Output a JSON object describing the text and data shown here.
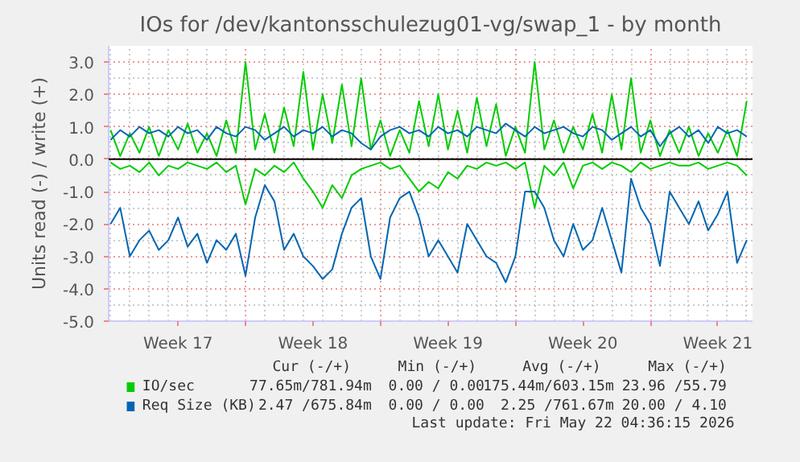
{
  "chart_data": {
    "type": "line",
    "title": "IOs for /dev/kantonsschulezug01-vg/swap_1 - by month",
    "ylabel": "Units read (-) / write (+)",
    "x": [
      "2026-04-20T00:00",
      "2026-04-20T12:00",
      "2026-04-21T00:00",
      "2026-04-21T12:00",
      "2026-04-22T00:00",
      "2026-04-22T12:00",
      "2026-04-23T00:00",
      "2026-04-23T12:00",
      "2026-04-24T00:00",
      "2026-04-24T12:00",
      "2026-04-25T00:00",
      "2026-04-25T12:00",
      "2026-04-26T00:00",
      "2026-04-26T12:00",
      "2026-04-27T00:00",
      "2026-04-27T12:00",
      "2026-04-28T00:00",
      "2026-04-28T12:00",
      "2026-04-29T00:00",
      "2026-04-29T12:00",
      "2026-04-30T00:00",
      "2026-04-30T12:00",
      "2026-05-01T00:00",
      "2026-05-01T12:00",
      "2026-05-02T00:00",
      "2026-05-02T12:00",
      "2026-05-03T00:00",
      "2026-05-03T12:00",
      "2026-05-04T00:00",
      "2026-05-04T12:00",
      "2026-05-05T00:00",
      "2026-05-05T12:00",
      "2026-05-06T00:00",
      "2026-05-06T12:00",
      "2026-05-07T00:00",
      "2026-05-07T12:00",
      "2026-05-08T00:00",
      "2026-05-08T12:00",
      "2026-05-09T00:00",
      "2026-05-09T12:00",
      "2026-05-10T00:00",
      "2026-05-10T12:00",
      "2026-05-11T00:00",
      "2026-05-11T12:00",
      "2026-05-12T00:00",
      "2026-05-12T12:00",
      "2026-05-13T00:00",
      "2026-05-13T12:00",
      "2026-05-14T00:00",
      "2026-05-14T12:00",
      "2026-05-15T00:00",
      "2026-05-15T12:00",
      "2026-05-16T00:00",
      "2026-05-16T12:00",
      "2026-05-17T00:00",
      "2026-05-17T12:00",
      "2026-05-18T00:00",
      "2026-05-18T12:00",
      "2026-05-19T00:00",
      "2026-05-19T12:00",
      "2026-05-20T00:00",
      "2026-05-20T12:00",
      "2026-05-21T00:00",
      "2026-05-21T12:00",
      "2026-05-22T00:00",
      "2026-05-22T12:00",
      "2026-05-23T00:00"
    ],
    "series": [
      {
        "name": "IO/sec",
        "color": "#00cc00",
        "values": [
          0.9,
          0.1,
          0.8,
          0.2,
          1.0,
          0.1,
          0.9,
          0.3,
          1.1,
          0.2,
          0.8,
          0.1,
          1.2,
          0.2,
          3.0,
          0.3,
          1.4,
          0.2,
          1.6,
          0.4,
          2.7,
          0.3,
          2.0,
          0.5,
          2.3,
          0.4,
          2.5,
          0.3,
          1.2,
          0.1,
          0.9,
          0.2,
          1.8,
          0.4,
          2.0,
          0.3,
          1.5,
          0.2,
          1.9,
          0.4,
          1.7,
          0.1,
          1.0,
          0.2,
          3.0,
          0.3,
          1.2,
          0.2,
          1.0,
          0.3,
          1.4,
          0.2,
          2.0,
          0.3,
          2.5,
          0.2,
          1.2,
          0.1,
          0.9,
          0.2,
          1.0,
          0.1,
          0.8,
          0.2,
          0.9,
          0.1,
          1.8
        ]
      },
      {
        "color": "#00cc00",
        "values": [
          -0.1,
          -0.3,
          -0.2,
          -0.4,
          -0.1,
          -0.5,
          -0.2,
          -0.3,
          -0.1,
          -0.2,
          -0.3,
          -0.1,
          -0.4,
          -0.2,
          -1.4,
          -0.3,
          -0.5,
          -0.2,
          -0.4,
          -0.1,
          -0.6,
          -1.0,
          -1.5,
          -0.8,
          -1.2,
          -0.5,
          -0.3,
          -0.2,
          -0.1,
          -0.3,
          -0.2,
          -0.6,
          -1.0,
          -0.7,
          -0.9,
          -0.4,
          -0.6,
          -0.2,
          -0.3,
          -0.1,
          -0.2,
          -0.1,
          -0.3,
          -0.1,
          -1.5,
          -0.2,
          -0.5,
          -0.1,
          -0.9,
          -0.2,
          -0.1,
          -0.3,
          -0.1,
          -0.2,
          -0.4,
          -0.1,
          -0.3,
          -0.2,
          -0.1,
          -0.2,
          -0.2,
          -0.1,
          -0.3,
          -0.2,
          -0.1,
          -0.2,
          -0.5
        ]
      },
      {
        "name": "Req Size (KB)",
        "color": "#0066b3",
        "values": [
          0.6,
          0.9,
          0.7,
          1.0,
          0.8,
          0.9,
          0.7,
          1.0,
          0.8,
          0.9,
          0.6,
          1.0,
          0.8,
          0.7,
          1.0,
          0.9,
          0.6,
          0.8,
          1.0,
          0.7,
          0.9,
          0.8,
          1.0,
          0.7,
          0.9,
          0.8,
          0.5,
          0.3,
          0.7,
          0.9,
          1.0,
          0.8,
          0.9,
          0.7,
          1.0,
          0.8,
          0.9,
          0.7,
          1.0,
          0.9,
          0.8,
          1.1,
          0.9,
          0.7,
          1.0,
          0.8,
          0.9,
          1.0,
          0.8,
          0.7,
          1.0,
          0.9,
          0.6,
          0.8,
          1.0,
          0.7,
          0.9,
          0.4,
          0.8,
          1.0,
          0.7,
          0.9,
          0.5,
          1.0,
          0.8,
          0.9,
          0.7
        ]
      },
      {
        "color": "#0066b3",
        "values": [
          -2.0,
          -1.5,
          -3.0,
          -2.5,
          -2.2,
          -2.8,
          -2.5,
          -1.8,
          -2.7,
          -2.3,
          -3.2,
          -2.5,
          -2.8,
          -2.3,
          -3.6,
          -1.8,
          -0.8,
          -1.3,
          -2.8,
          -2.3,
          -3.0,
          -3.3,
          -3.7,
          -3.4,
          -2.3,
          -1.5,
          -1.2,
          -3.0,
          -3.7,
          -1.8,
          -1.2,
          -1.0,
          -1.8,
          -3.0,
          -2.5,
          -3.0,
          -3.5,
          -2.0,
          -2.5,
          -3.0,
          -3.2,
          -3.8,
          -3.0,
          -1.0,
          -1.0,
          -1.5,
          -2.5,
          -3.0,
          -2.0,
          -2.8,
          -2.5,
          -1.5,
          -2.5,
          -3.5,
          -0.6,
          -1.5,
          -2.0,
          -3.3,
          -1.0,
          -1.5,
          -2.0,
          -1.3,
          -2.2,
          -1.7,
          -1.0,
          -3.2,
          -2.5
        ]
      }
    ],
    "xlim": [
      "2026-04-19T21:36",
      "2026-05-23T07:12"
    ],
    "xticks": [
      {
        "value": "2026-04-27",
        "label": null
      },
      {
        "value": "2026-05-04",
        "label": null
      },
      {
        "value": "2026-05-11",
        "label": null
      },
      {
        "value": "2026-05-18",
        "label": null
      },
      {
        "value": "2026-04-23T12:00",
        "label": "Week 17"
      },
      {
        "value": "2026-04-30T12:00",
        "label": "Week 18"
      },
      {
        "value": "2026-05-07T12:00",
        "label": "Week 19"
      },
      {
        "value": "2026-05-14T12:00",
        "label": "Week 20"
      },
      {
        "value": "2026-05-21T12:00",
        "label": "Week 21"
      }
    ],
    "ylim": [
      -5,
      3.5
    ],
    "yticks": [
      {
        "value": 3,
        "label": "3.0"
      },
      {
        "value": 2,
        "label": "2.0"
      },
      {
        "value": 1,
        "label": "1.0"
      },
      {
        "value": 0,
        "label": "0.0"
      },
      {
        "value": -1,
        "label": "-1.0"
      },
      {
        "value": -2,
        "label": "-2.0"
      },
      {
        "value": -3,
        "label": "-3.0"
      },
      {
        "value": -4,
        "label": "-4.0"
      },
      {
        "value": -5,
        "label": "-5.0"
      }
    ],
    "ref_lines": [
      {
        "axis": "y",
        "value": 0,
        "color": "#000000"
      }
    ],
    "grid": true,
    "legend": "bottom",
    "line_style": "solid",
    "marker": "none",
    "annotations": [
      "Cur (-/+)",
      "Min (-/+)",
      "Avg (-/+)",
      "Max (-/+)",
      "77.65m/781.94m",
      "0.00 / 0.00",
      "175.44m/603.15m",
      "23.96 /55.79",
      "2.47 /675.84m",
      "0.00 / 0.00",
      "2.25 /761.67m",
      "20.00 / 4.10",
      "Last update: Fri May 22 04:36:15 2026"
    ]
  }
}
